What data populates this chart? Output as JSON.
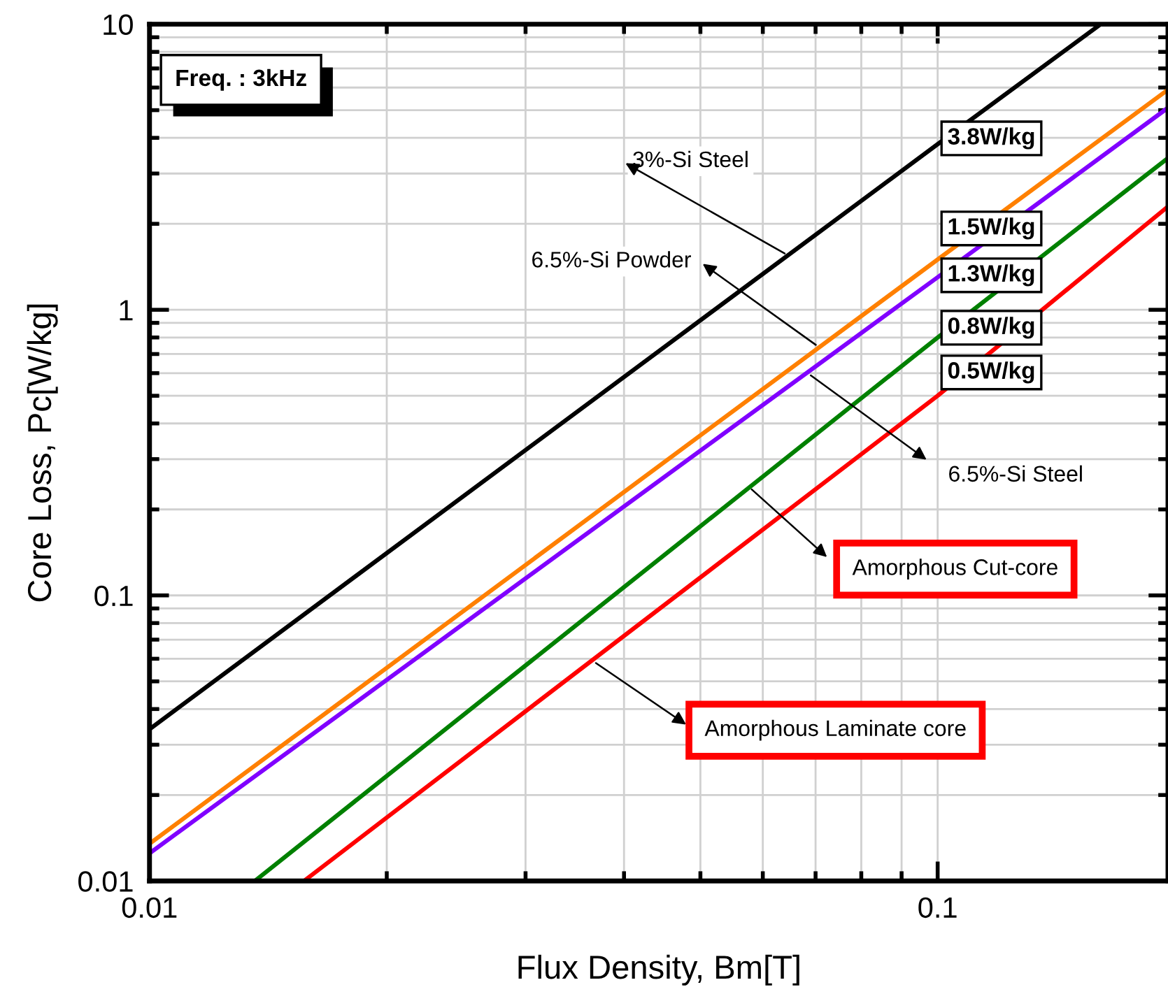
{
  "chart_data": {
    "type": "line",
    "xlabel": "Flux Density, Bm[T]",
    "ylabel": "Core Loss, Pc[W/kg]",
    "annotations": [
      "Freq. : 3kHz",
      {
        "text": "3%-Si Steel",
        "x": 0.0646,
        "y": 1.55
      },
      {
        "text": "6.5%-Si Powder",
        "x": 0.0707,
        "y": 0.74
      },
      {
        "text": "6.5%-Si Steel",
        "x": 0.0684,
        "y": 0.6
      },
      {
        "text": "Amorphous Cut-core",
        "x": 0.0576,
        "y": 0.24
      },
      {
        "text": "Amorphous Laminate core",
        "x": 0.0365,
        "y": 0.059
      }
    ],
    "log": "xy",
    "xlim": [
      0.01,
      0.196
    ],
    "ylim": [
      0.01,
      10
    ],
    "xticks": [
      0.01,
      0.1
    ],
    "yticks": [
      0.01,
      0.1,
      1,
      10
    ],
    "grid": true,
    "legend": false,
    "marker": "none",
    "line_style": "solid",
    "series": [
      {
        "color": "#000000",
        "x": [
          0.01,
          0.1,
          0.161
        ],
        "values": [
          0.034,
          3.8,
          10
        ],
        "value_labels": [
          null,
          "3.8W/kg",
          null
        ]
      },
      {
        "color": "#ff8000",
        "x": [
          0.01,
          0.1,
          0.196
        ],
        "values": [
          0.0135,
          1.5,
          5.9
        ],
        "value_labels": [
          null,
          "1.5W/kg",
          null
        ]
      },
      {
        "color": "#8000ff",
        "x": [
          0.01,
          0.1,
          0.196
        ],
        "values": [
          0.0125,
          1.3,
          5.1
        ],
        "value_labels": [
          null,
          "1.3W/kg",
          null
        ]
      },
      {
        "color": "#008000",
        "x": [
          0.0136,
          0.1,
          0.196
        ],
        "values": [
          0.01,
          0.8,
          3.4
        ],
        "value_labels": [
          null,
          "0.8W/kg",
          null
        ]
      },
      {
        "color": "#ff0000",
        "x": [
          0.0157,
          0.1,
          0.196
        ],
        "values": [
          0.01,
          0.5,
          2.3
        ],
        "value_labels": [
          null,
          "0.5W/kg",
          null
        ]
      }
    ]
  }
}
